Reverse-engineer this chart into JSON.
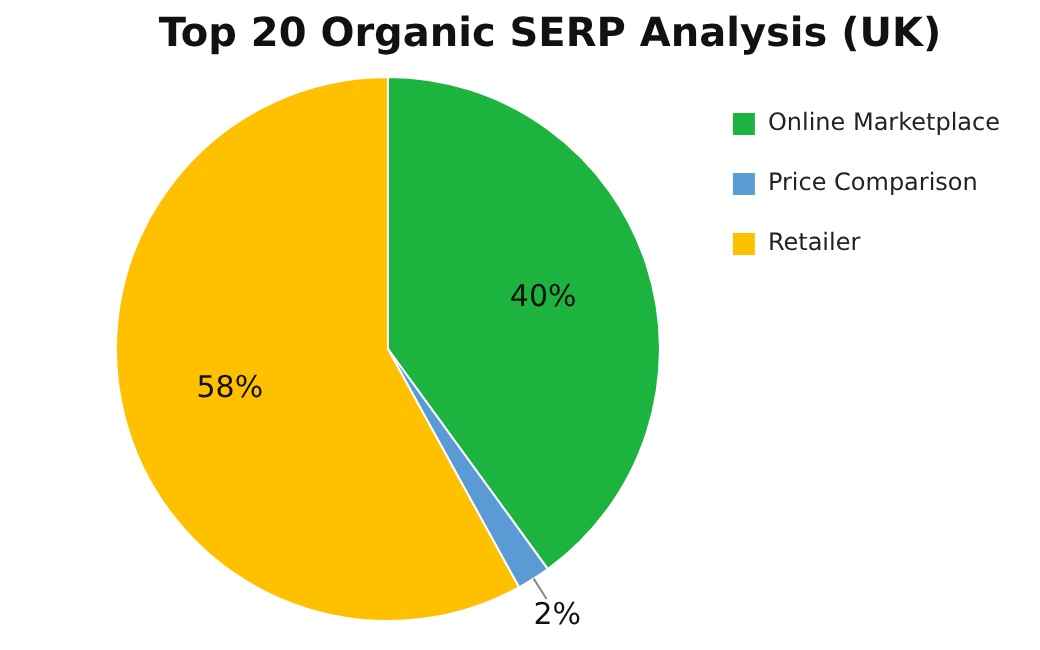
{
  "chart_data": {
    "type": "pie",
    "title": "Top 20 Organic SERP Analysis (UK)",
    "categories": [
      "Online Marketplace",
      "Price Comparison",
      "Retailer"
    ],
    "values": [
      40,
      2,
      58
    ],
    "colors": [
      "#1db33f",
      "#5b9bd5",
      "#ffc000"
    ],
    "value_labels": [
      "40%",
      "2%",
      "58%"
    ],
    "legend": "right"
  }
}
